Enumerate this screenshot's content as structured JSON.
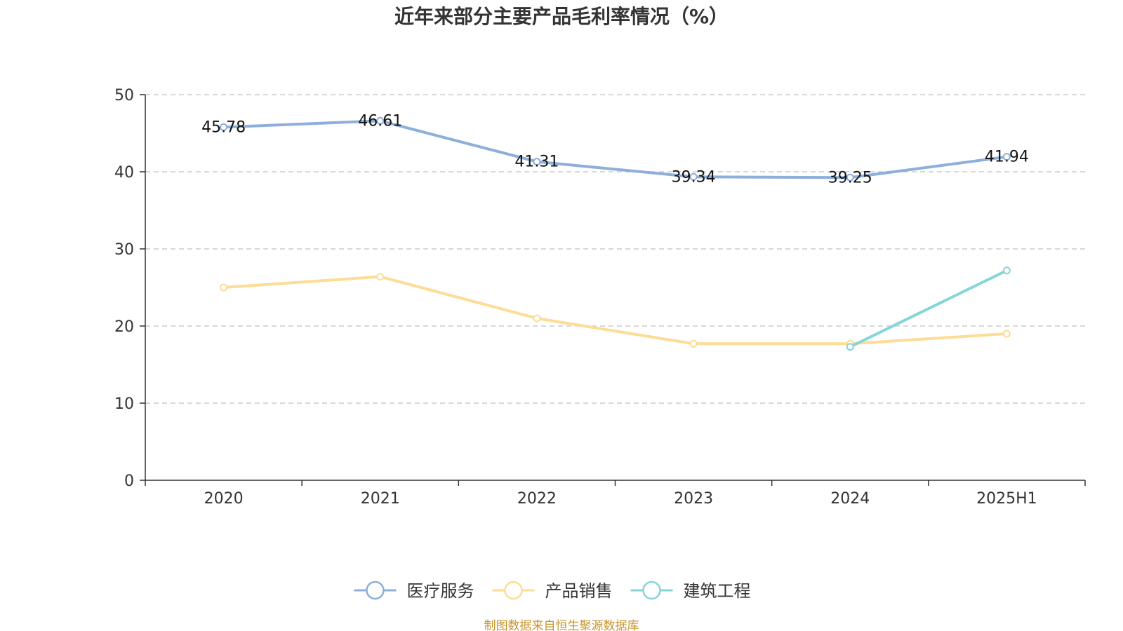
{
  "chart_data": {
    "type": "line",
    "title": "近年来部分主要产品毛利率情况（%）",
    "categories": [
      "2020",
      "2021",
      "2022",
      "2023",
      "2024",
      "2025H1"
    ],
    "ylim": [
      0,
      50
    ],
    "yticks": [
      0,
      10,
      20,
      30,
      40,
      50
    ],
    "grid": true,
    "legend_position": "bottom",
    "series": [
      {
        "name": "医疗服务",
        "color": "#8eaedb",
        "values": [
          45.78,
          46.61,
          41.31,
          39.34,
          39.25,
          41.94
        ],
        "labels": [
          "45.78",
          "46.61",
          "41.31",
          "39.34",
          "39.25",
          "41.94"
        ]
      },
      {
        "name": "产品销售",
        "color": "#fddc95",
        "values": [
          25.0,
          26.4,
          21.0,
          17.7,
          17.7,
          19.0
        ]
      },
      {
        "name": "建筑工程",
        "color": "#86d5d8",
        "values": [
          null,
          null,
          null,
          null,
          17.3,
          27.2
        ]
      }
    ]
  },
  "source": {
    "text": "制图数据来自恒生聚源数据库",
    "color": "#c8962e"
  }
}
